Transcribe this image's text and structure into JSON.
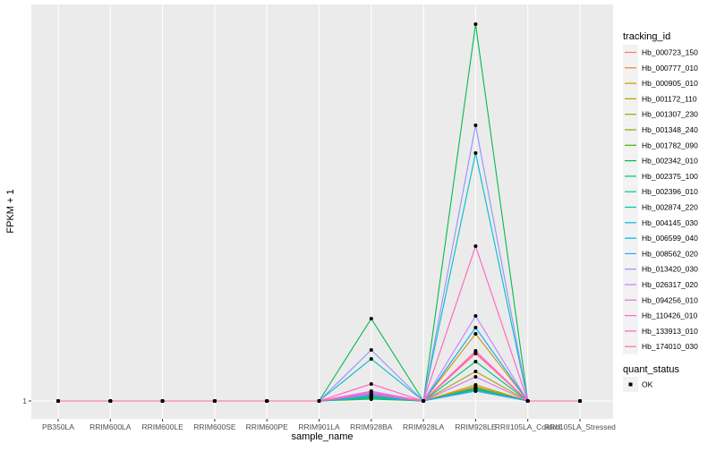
{
  "chart_data": {
    "type": "line",
    "xlabel": "sample_name",
    "ylabel": "FPKM + 1",
    "categories": [
      "PB350LA",
      "RRIM600LA",
      "RRIM600LE",
      "RRIM600SE",
      "RRIM600PE",
      "RRIM901LA",
      "RRIM928BA",
      "RRIM928LA",
      "RRIM928LE",
      "RRII105LA_Control",
      "RRII105LA_Stressed"
    ],
    "yticks": [
      1
    ],
    "ylim": [
      -1,
      45.3
    ],
    "grid": true,
    "legend_placement": "right",
    "legend_title": "tracking_id",
    "shape_legend": {
      "title": "quant_status",
      "entries": [
        "OK"
      ]
    },
    "series": [
      {
        "name": "Hb_000723_150",
        "color": "#F8766D",
        "values": [
          1,
          1,
          1,
          1,
          1,
          1,
          1.4,
          1,
          6.4,
          1,
          1
        ]
      },
      {
        "name": "Hb_000777_010",
        "color": "#EA8331",
        "values": [
          1,
          1,
          1,
          1,
          1,
          1,
          1.5,
          1,
          2.6,
          1,
          1
        ]
      },
      {
        "name": "Hb_000905_010",
        "color": "#D89000",
        "values": [
          1,
          1,
          1,
          1,
          1,
          1,
          1.7,
          1,
          8.5,
          1,
          1
        ]
      },
      {
        "name": "Hb_001172_110",
        "color": "#C09B00",
        "values": [
          1,
          1,
          1,
          1,
          1,
          1,
          1.6,
          1,
          2.8,
          1,
          1
        ]
      },
      {
        "name": "Hb_001307_230",
        "color": "#A3A500",
        "values": [
          1,
          1,
          1,
          1,
          1,
          1,
          1.4,
          1,
          4.3,
          1,
          1
        ]
      },
      {
        "name": "Hb_001348_240",
        "color": "#7CAE00",
        "values": [
          1,
          1,
          1,
          1,
          1,
          1,
          1.3,
          1,
          2.5,
          1,
          1
        ]
      },
      {
        "name": "Hb_001782_090",
        "color": "#39B600",
        "values": [
          1,
          1,
          1,
          1,
          1,
          1,
          1.2,
          1,
          2.3,
          1,
          1
        ]
      },
      {
        "name": "Hb_002342_010",
        "color": "#00BB4E",
        "values": [
          1,
          1,
          1,
          1,
          1,
          1,
          10.2,
          1,
          43.1,
          1,
          1
        ]
      },
      {
        "name": "Hb_002375_100",
        "color": "#00BF7D",
        "values": [
          1,
          1,
          1,
          1,
          1,
          1,
          1.4,
          1,
          5.4,
          1,
          1
        ]
      },
      {
        "name": "Hb_002396_010",
        "color": "#00C1A3",
        "values": [
          1,
          1,
          1,
          1,
          1,
          1,
          1.5,
          1,
          2.4,
          1,
          1
        ]
      },
      {
        "name": "Hb_002874_220",
        "color": "#00BFC4",
        "values": [
          1,
          1,
          1,
          1,
          1,
          1,
          5.7,
          1,
          28.7,
          1,
          1
        ]
      },
      {
        "name": "Hb_004145_030",
        "color": "#00BAE0",
        "values": [
          1,
          1,
          1,
          1,
          1,
          1,
          1.3,
          1,
          2.2,
          1,
          1
        ]
      },
      {
        "name": "Hb_006599_040",
        "color": "#00B0F6",
        "values": [
          1,
          1,
          1,
          1,
          1,
          1,
          1.6,
          1,
          9.2,
          1,
          1
        ]
      },
      {
        "name": "Hb_008562_020",
        "color": "#35A2FF",
        "values": [
          1,
          1,
          1,
          1,
          1,
          1,
          1.8,
          1,
          2.1,
          1,
          1
        ]
      },
      {
        "name": "Hb_013420_030",
        "color": "#9590FF",
        "values": [
          1,
          1,
          1,
          1,
          1,
          1,
          6.7,
          1,
          31.8,
          1,
          1
        ]
      },
      {
        "name": "Hb_026317_020",
        "color": "#C77CFF",
        "values": [
          1,
          1,
          1,
          1,
          1,
          1,
          2.0,
          1,
          10.5,
          1,
          1
        ]
      },
      {
        "name": "Hb_094256_010",
        "color": "#E76BF3",
        "values": [
          1,
          1,
          1,
          1,
          1,
          1,
          1.9,
          1,
          3.7,
          1,
          1
        ]
      },
      {
        "name": "Hb_110426_010",
        "color": "#FA62DB",
        "values": [
          1,
          1,
          1,
          1,
          1,
          1,
          2.1,
          1,
          6.6,
          1,
          1
        ]
      },
      {
        "name": "Hb_133913_010",
        "color": "#FF62BC",
        "values": [
          1,
          1,
          1,
          1,
          1,
          1,
          2.9,
          1,
          18.3,
          1,
          1
        ]
      },
      {
        "name": "Hb_174010_030",
        "color": "#FF6C91",
        "values": [
          1,
          1,
          1,
          1,
          1,
          1,
          1.7,
          1,
          6.3,
          1,
          1
        ]
      }
    ]
  }
}
